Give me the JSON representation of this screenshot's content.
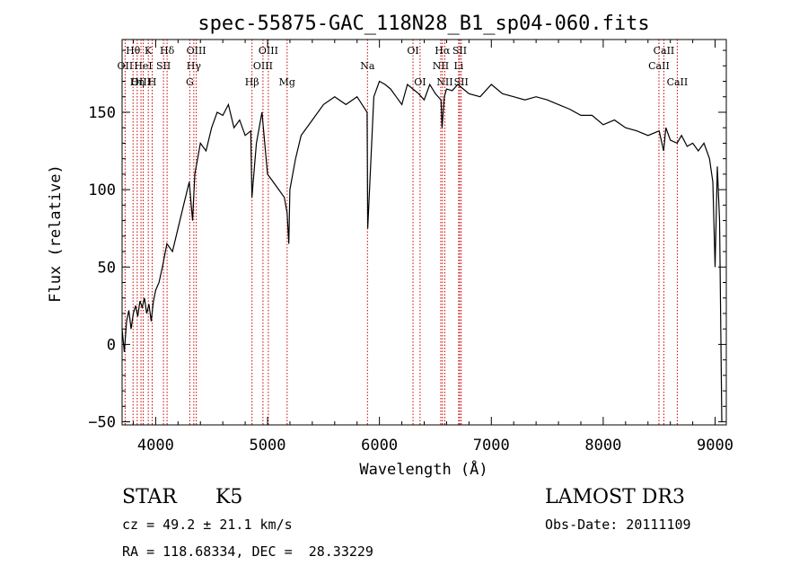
{
  "chart_data": {
    "type": "line",
    "title": "spec-55875-GAC_118N28_B1_sp04-060.fits",
    "xlabel": "Wavelength (Å)",
    "ylabel": "Flux (relative)",
    "xlim": [
      3700,
      9100
    ],
    "ylim": [
      -52,
      197
    ],
    "xticks": [
      4000,
      5000,
      6000,
      7000,
      8000,
      9000
    ],
    "yticks": [
      -50,
      0,
      50,
      100,
      150
    ],
    "xtick_labels": [
      "4000",
      "5000",
      "6000",
      "7000",
      "8000",
      "9000"
    ],
    "ytick_labels": [
      "−50",
      "0",
      "50",
      "100",
      "150"
    ],
    "spectrum_color": "#000000",
    "line_color": "#cc0000",
    "spectrum": {
      "x": [
        3700,
        3720,
        3740,
        3760,
        3780,
        3800,
        3820,
        3840,
        3860,
        3880,
        3900,
        3920,
        3940,
        3960,
        3980,
        4000,
        4030,
        4060,
        4100,
        4150,
        4200,
        4250,
        4300,
        4330,
        4350,
        4400,
        4450,
        4500,
        4550,
        4600,
        4650,
        4700,
        4750,
        4800,
        4850,
        4860,
        4900,
        4950,
        5000,
        5050,
        5100,
        5150,
        5175,
        5190,
        5200,
        5250,
        5300,
        5400,
        5500,
        5600,
        5700,
        5800,
        5890,
        5895,
        5950,
        6000,
        6050,
        6100,
        6150,
        6200,
        6250,
        6300,
        6350,
        6400,
        6450,
        6500,
        6550,
        6560,
        6580,
        6600,
        6650,
        6700,
        6750,
        6800,
        6900,
        7000,
        7100,
        7200,
        7300,
        7400,
        7500,
        7600,
        7700,
        7800,
        7900,
        8000,
        8100,
        8200,
        8300,
        8400,
        8500,
        8540,
        8560,
        8600,
        8660,
        8700,
        8750,
        8800,
        8850,
        8900,
        8950,
        8980,
        9000,
        9020,
        9040,
        9060
      ],
      "y": [
        10,
        -5,
        15,
        22,
        10,
        20,
        25,
        18,
        28,
        24,
        30,
        20,
        26,
        15,
        28,
        35,
        40,
        50,
        65,
        60,
        75,
        90,
        105,
        80,
        110,
        130,
        125,
        140,
        150,
        148,
        155,
        140,
        145,
        135,
        138,
        95,
        130,
        150,
        110,
        105,
        100,
        95,
        85,
        65,
        100,
        120,
        135,
        145,
        155,
        160,
        155,
        160,
        150,
        75,
        160,
        170,
        168,
        165,
        160,
        155,
        168,
        165,
        162,
        158,
        168,
        162,
        158,
        140,
        160,
        165,
        164,
        168,
        165,
        162,
        160,
        168,
        162,
        160,
        158,
        160,
        158,
        155,
        152,
        148,
        148,
        142,
        145,
        140,
        138,
        135,
        138,
        125,
        140,
        132,
        130,
        135,
        128,
        130,
        125,
        130,
        120,
        105,
        50,
        115,
        80,
        -50
      ]
    },
    "emission_lines": [
      {
        "label": "Hθ",
        "x": 3798,
        "row": 0
      },
      {
        "label": "OII",
        "x": 3727,
        "row": 1
      },
      {
        "label": "OIII",
        "x": 3869,
        "row": 2
      },
      {
        "label": "K",
        "x": 3934,
        "row": 0
      },
      {
        "label": "HeI",
        "x": 3889,
        "row": 1
      },
      {
        "label": "Hη",
        "x": 3835,
        "row": 2
      },
      {
        "label": "Hδ",
        "x": 4102,
        "row": 0
      },
      {
        "label": "SII",
        "x": 4070,
        "row": 1
      },
      {
        "label": "H",
        "x": 3969,
        "row": 2
      },
      {
        "label": "OIII",
        "x": 4363,
        "row": 0
      },
      {
        "label": "Hγ",
        "x": 4341,
        "row": 1
      },
      {
        "label": "G",
        "x": 4305,
        "row": 2
      },
      {
        "label": "OIII",
        "x": 5007,
        "row": 0
      },
      {
        "label": "OIII",
        "x": 4959,
        "row": 1
      },
      {
        "label": "Hβ",
        "x": 4861,
        "row": 2
      },
      {
        "label": "Mg",
        "x": 5175,
        "row": 2
      },
      {
        "label": "Na",
        "x": 5893,
        "row": 1
      },
      {
        "label": "OI",
        "x": 6300,
        "row": 0
      },
      {
        "label": "OI",
        "x": 6363,
        "row": 2
      },
      {
        "label": "Hα",
        "x": 6563,
        "row": 0
      },
      {
        "label": "NII",
        "x": 6548,
        "row": 1
      },
      {
        "label": "NII",
        "x": 6584,
        "row": 2
      },
      {
        "label": "SII",
        "x": 6717,
        "row": 0
      },
      {
        "label": "Li",
        "x": 6708,
        "row": 1
      },
      {
        "label": "SII",
        "x": 6731,
        "row": 2
      },
      {
        "label": "CaII",
        "x": 8542,
        "row": 0
      },
      {
        "label": "CaII",
        "x": 8498,
        "row": 1
      },
      {
        "label": "CaII",
        "x": 8662,
        "row": 2
      }
    ]
  },
  "info": {
    "class": "STAR",
    "subclass": "K5",
    "cz": "cz = 49.2 ± 21.1 km/s",
    "radec": "RA = 118.68334, DEC =  28.33229",
    "survey": "LAMOST DR3",
    "obsdate": "Obs-Date: 20111109"
  }
}
